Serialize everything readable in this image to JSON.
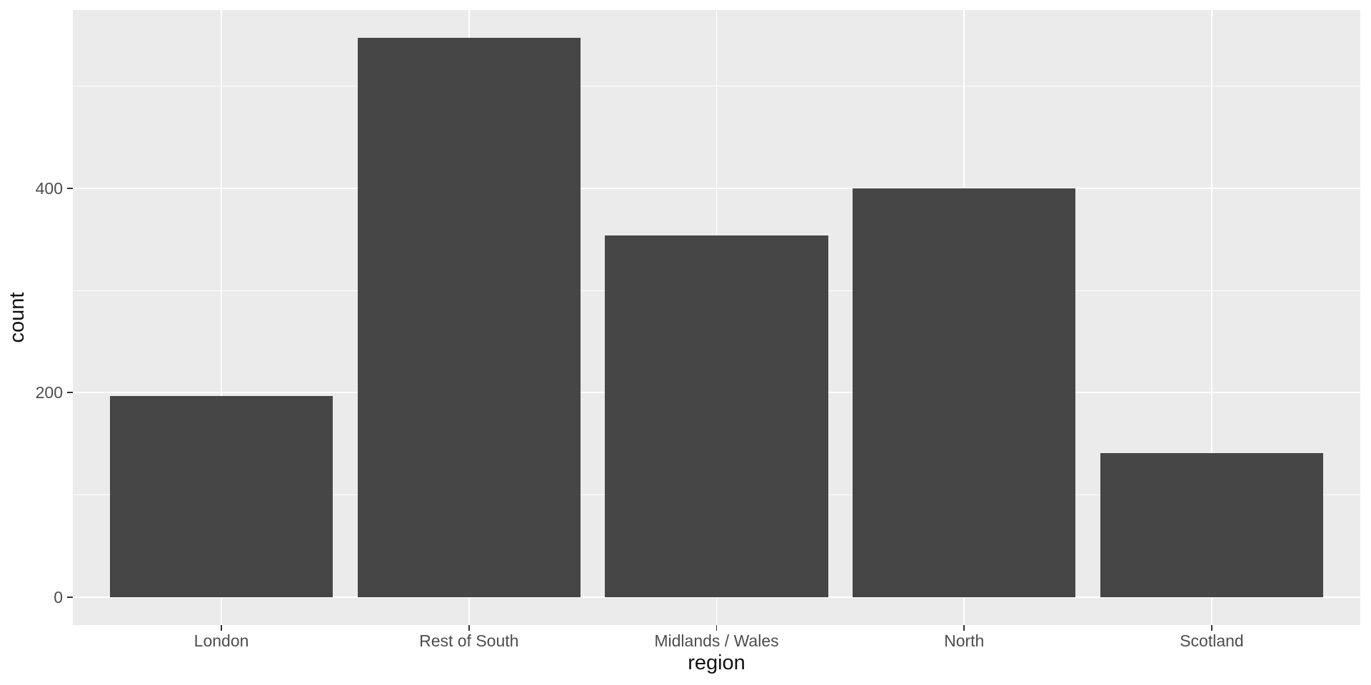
{
  "chart_data": {
    "type": "bar",
    "title": "",
    "categories": [
      "London",
      "Rest of South",
      "Midlands / Wales",
      "North",
      "Scotland"
    ],
    "values": [
      197,
      547,
      354,
      400,
      141
    ],
    "xlabel": "region",
    "ylabel": "count",
    "y_ticks": [
      0,
      200,
      400
    ],
    "y_minor_gridlines": [
      100,
      300,
      500
    ],
    "ylim": [
      -27,
      574
    ],
    "x_expansion_units": 0.6,
    "bar_width_units": 0.9,
    "legend": "none",
    "grid": "major-and-minor-horizontal, major-vertical-at-categories",
    "colors": {
      "bar_fill": "#464646",
      "panel_background": "#EBEBEB",
      "gridline": "#FFFFFF",
      "axis_text": "#4D4D4D",
      "axis_title": "#111111",
      "tick_mark": "#333333",
      "outer_background": "#FFFFFF"
    }
  }
}
